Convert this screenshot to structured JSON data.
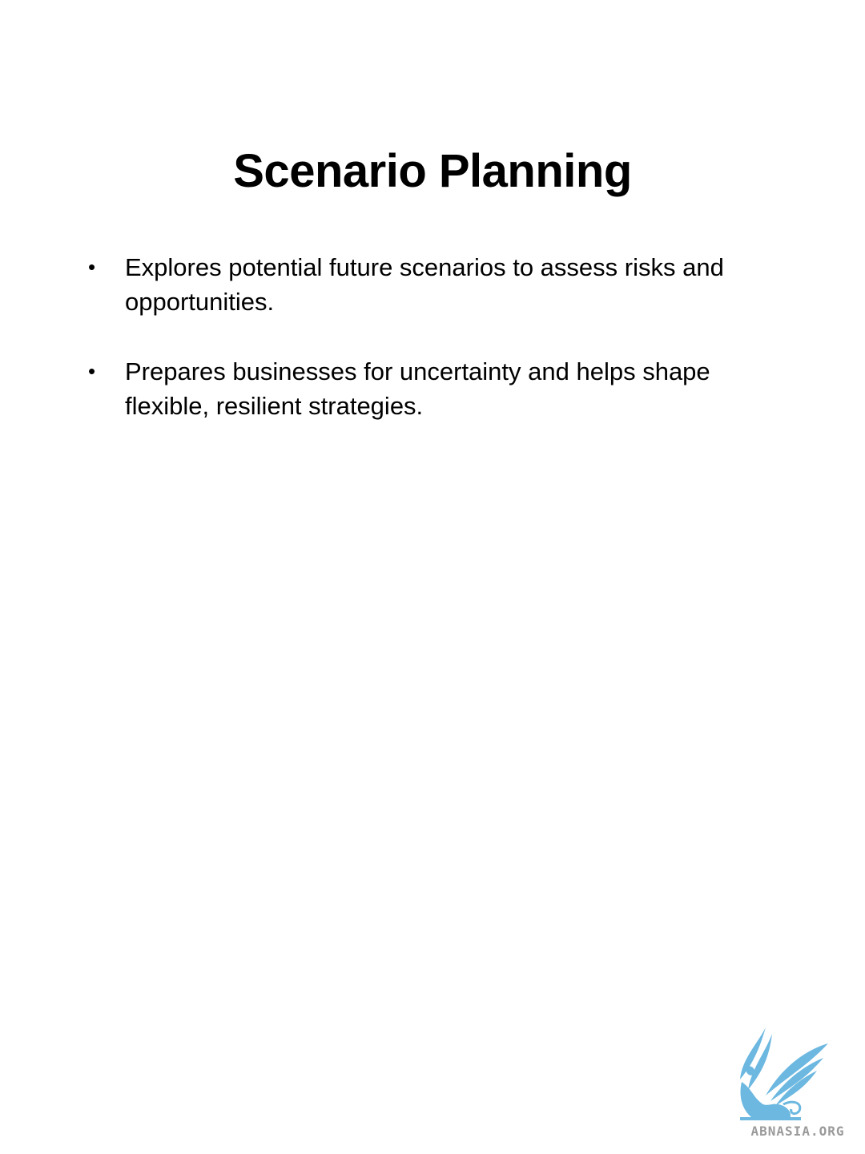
{
  "slide": {
    "title": "Scenario Planning",
    "bullet_glyph": "•",
    "bullets": [
      {
        "text": "Explores potential future scenarios to assess risks and opportunities."
      },
      {
        "text": "Prepares businesses for uncertainty and helps shape flexible, resilient strategies."
      }
    ]
  },
  "logo": {
    "icon": "griffin-logo-icon",
    "text": "ABNASIA.ORG",
    "color": "#6cb8e0",
    "text_color": "#9a9a9a"
  }
}
